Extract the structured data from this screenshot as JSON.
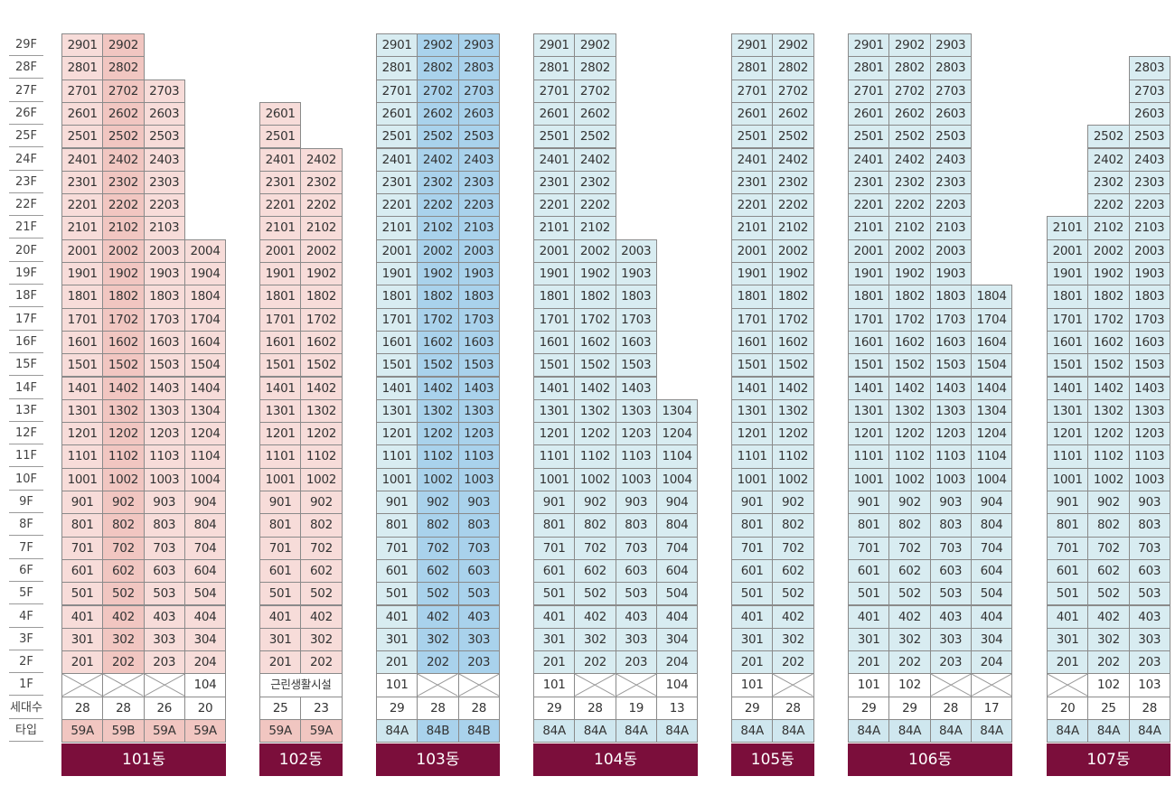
{
  "floor_labels": [
    "29F",
    "28F",
    "27F",
    "26F",
    "25F",
    "24F",
    "23F",
    "22F",
    "21F",
    "20F",
    "19F",
    "18F",
    "17F",
    "16F",
    "15F",
    "14F",
    "13F",
    "12F",
    "11F",
    "10F",
    "9F",
    "8F",
    "7F",
    "6F",
    "5F",
    "4F",
    "3F",
    "2F",
    "1F",
    "세대수",
    "타입"
  ],
  "colors": {
    "pink": "#f7dcd9",
    "pink_dark": "#f1c6c1",
    "blue": "#d8ecf1",
    "blue_dark": "#a9d2ec",
    "building_label_bg": "#7b0e3b"
  },
  "buildings": [
    {
      "name": "101동",
      "theme": "pink",
      "columns": [
        {
          "unit": "01",
          "top_floor": 29,
          "first_floor": "",
          "count": "28",
          "type": "59A",
          "highlight": false
        },
        {
          "unit": "02",
          "top_floor": 29,
          "first_floor": "",
          "count": "28",
          "type": "59B",
          "highlight": true
        },
        {
          "unit": "03",
          "top_floor": 27,
          "first_floor": "",
          "count": "26",
          "type": "59A",
          "highlight": false
        },
        {
          "unit": "04",
          "top_floor": 20,
          "first_floor": "104",
          "count": "20",
          "type": "59A",
          "highlight": false
        }
      ]
    },
    {
      "name": "102동",
      "theme": "pink",
      "first_floor_label": "근린생활시설",
      "columns": [
        {
          "unit": "01",
          "top_floor": 26,
          "count": "25",
          "type": "59A",
          "highlight": false
        },
        {
          "unit": "02",
          "top_floor": 24,
          "count": "23",
          "type": "59A",
          "highlight": false
        }
      ]
    },
    {
      "name": "103동",
      "theme": "blue",
      "columns": [
        {
          "unit": "01",
          "top_floor": 29,
          "first_floor": "101",
          "count": "29",
          "type": "84A",
          "highlight": false
        },
        {
          "unit": "02",
          "top_floor": 29,
          "first_floor": "",
          "count": "28",
          "type": "84B",
          "highlight": true
        },
        {
          "unit": "03",
          "top_floor": 29,
          "first_floor": "",
          "count": "28",
          "type": "84B",
          "highlight": true
        }
      ]
    },
    {
      "name": "104동",
      "theme": "blue",
      "columns": [
        {
          "unit": "01",
          "top_floor": 29,
          "first_floor": "101",
          "count": "29",
          "type": "84A",
          "highlight": false
        },
        {
          "unit": "02",
          "top_floor": 29,
          "first_floor": "",
          "count": "28",
          "type": "84A",
          "highlight": false
        },
        {
          "unit": "03",
          "top_floor": 20,
          "first_floor": "",
          "count": "19",
          "type": "84A",
          "highlight": false
        },
        {
          "unit": "04",
          "top_floor": 13,
          "first_floor": "104",
          "count": "13",
          "type": "84A",
          "highlight": false
        }
      ]
    },
    {
      "name": "105동",
      "theme": "blue",
      "columns": [
        {
          "unit": "01",
          "top_floor": 29,
          "first_floor": "101",
          "count": "29",
          "type": "84A",
          "highlight": false
        },
        {
          "unit": "02",
          "top_floor": 29,
          "first_floor": "",
          "count": "28",
          "type": "84A",
          "highlight": false
        }
      ]
    },
    {
      "name": "106동",
      "theme": "blue",
      "columns": [
        {
          "unit": "01",
          "top_floor": 29,
          "first_floor": "101",
          "count": "29",
          "type": "84A",
          "highlight": false
        },
        {
          "unit": "02",
          "top_floor": 29,
          "first_floor": "102",
          "count": "29",
          "type": "84A",
          "highlight": false
        },
        {
          "unit": "03",
          "top_floor": 29,
          "first_floor": "",
          "count": "28",
          "type": "84A",
          "highlight": false
        },
        {
          "unit": "04",
          "top_floor": 18,
          "first_floor": "",
          "count": "17",
          "type": "84A",
          "highlight": false
        }
      ]
    },
    {
      "name": "107동",
      "theme": "blue",
      "columns": [
        {
          "unit": "01",
          "top_floor": 21,
          "first_floor": "",
          "count": "20",
          "type": "84A",
          "highlight": false
        },
        {
          "unit": "02",
          "top_floor": 25,
          "first_floor": "102",
          "count": "25",
          "type": "84A",
          "highlight": false
        },
        {
          "unit": "03",
          "top_floor": 28,
          "first_floor": "103",
          "count": "28",
          "type": "84A",
          "highlight": false
        }
      ]
    }
  ]
}
